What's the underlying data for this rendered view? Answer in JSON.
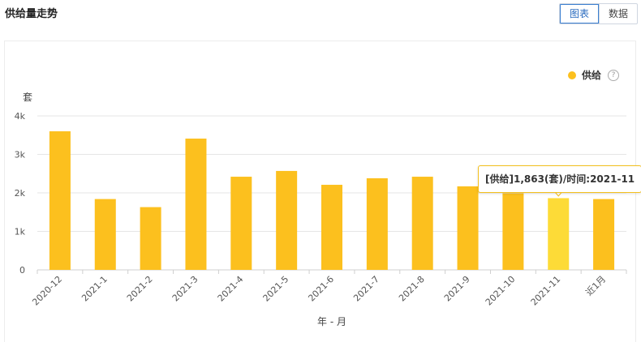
{
  "header": {
    "title": "供给量走势",
    "toggle": [
      {
        "label": "图表",
        "active": true
      },
      {
        "label": "数据",
        "active": false
      }
    ]
  },
  "legend": {
    "label": "供给",
    "color": "#fcc01e",
    "help": "?"
  },
  "tooltip": {
    "text": "[供给]1,863(套)/时间:2021-11"
  },
  "chart_data": {
    "type": "bar",
    "ylabel": "套",
    "xlabel": "年 - 月",
    "ylim": [
      0,
      4000
    ],
    "yticks": [
      {
        "value": 0,
        "label": "0"
      },
      {
        "value": 1000,
        "label": "1k"
      },
      {
        "value": 2000,
        "label": "2k"
      },
      {
        "value": 3000,
        "label": "3k"
      },
      {
        "value": 4000,
        "label": "4k"
      }
    ],
    "grid": true,
    "legend_position": "top-right",
    "categories": [
      "2020-12",
      "2021-1",
      "2021-2",
      "2021-3",
      "2021-4",
      "2021-5",
      "2021-6",
      "2021-7",
      "2021-8",
      "2021-9",
      "2021-10",
      "2021-11",
      "近1月"
    ],
    "series": [
      {
        "name": "供给",
        "color": "#fcc01e",
        "highlight_color": "#fddb37",
        "highlight_category": "2021-11",
        "values": [
          3600,
          1840,
          1630,
          3410,
          2420,
          2570,
          2210,
          2380,
          2420,
          2170,
          1990,
          1863,
          1840
        ]
      }
    ]
  }
}
